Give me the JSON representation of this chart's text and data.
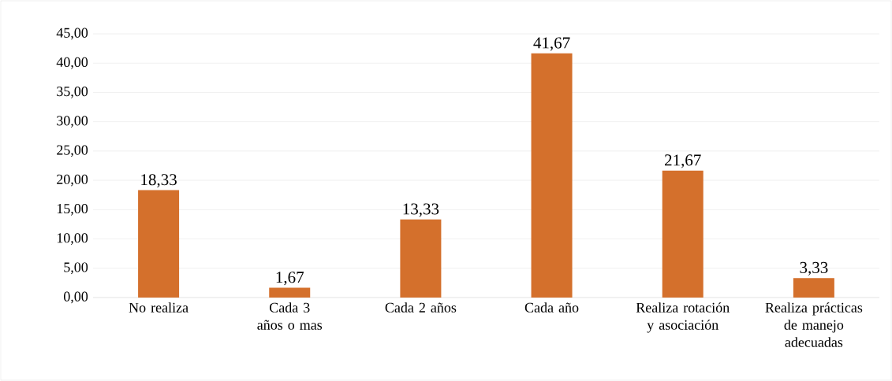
{
  "chart_data": {
    "type": "bar",
    "categories": [
      "No realiza",
      "Cada 3 años o mas",
      "Cada 2 años",
      "Cada año",
      "Realiza rotación y asociación",
      "Realiza prácticas de manejo adecuadas"
    ],
    "values": [
      18.33,
      1.67,
      13.33,
      41.67,
      21.67,
      3.33
    ],
    "value_labels": [
      "18,33",
      "1,67",
      "13,33",
      "41,67",
      "21,67",
      "3,33"
    ],
    "color": "#d4702c",
    "ylim": [
      0,
      45
    ],
    "yticks": [
      {
        "value": 0,
        "label": "0,00"
      },
      {
        "value": 5,
        "label": "5,00"
      },
      {
        "value": 10,
        "label": "10,00"
      },
      {
        "value": 15,
        "label": "15,00"
      },
      {
        "value": 20,
        "label": "20,00"
      },
      {
        "value": 25,
        "label": "25,00"
      },
      {
        "value": 30,
        "label": "30,00"
      },
      {
        "value": 35,
        "label": "35,00"
      },
      {
        "value": 40,
        "label": "40,00"
      },
      {
        "value": 45,
        "label": "45,00"
      }
    ],
    "grid": "y"
  }
}
